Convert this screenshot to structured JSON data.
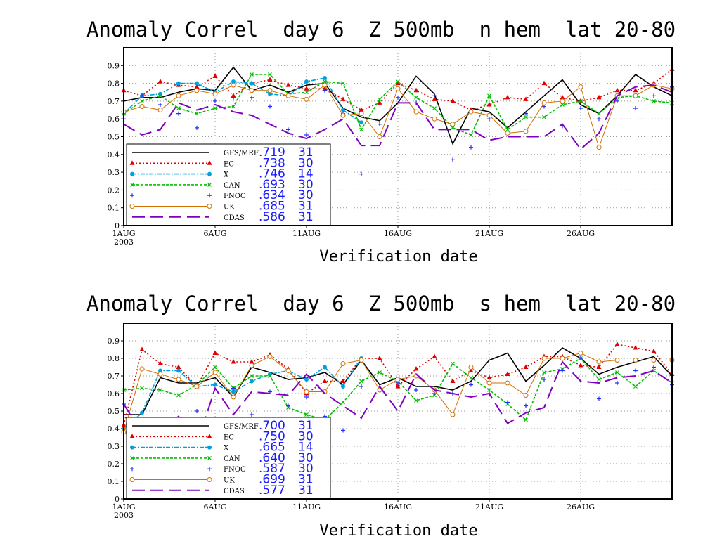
{
  "chart_data": [
    {
      "type": "line",
      "title": "Anomaly Correl  day 6  Z 500mb  n hem  lat 20-80",
      "xlabel": "Verification date",
      "ylabel": "",
      "ylim": [
        0,
        1.0
      ],
      "yticks": [
        "0",
        "0.1",
        "0.2",
        "0.3",
        "0.4",
        "0.5",
        "0.6",
        "0.7",
        "0.8",
        "0.9"
      ],
      "xticks": [
        {
          "day": 1,
          "label": "1AUG",
          "sub": "2003"
        },
        {
          "day": 6,
          "label": "6AUG"
        },
        {
          "day": 11,
          "label": "11AUG"
        },
        {
          "day": 16,
          "label": "16AUG"
        },
        {
          "day": 21,
          "label": "21AUG"
        },
        {
          "day": 26,
          "label": "26AUG"
        }
      ],
      "xlim": [
        1,
        31
      ],
      "grid": true,
      "legend_position": "lower-left",
      "series": [
        {
          "name": "GFS/MRF",
          "mean": ".719",
          "count": "31",
          "color": "#000000",
          "style": "solid",
          "marker": "none",
          "x": [
            1,
            2,
            3,
            4,
            5,
            6,
            7,
            8,
            9,
            10,
            11,
            12,
            13,
            14,
            15,
            16,
            17,
            18,
            19,
            20,
            21,
            22,
            23,
            24,
            25,
            26,
            27,
            28,
            29,
            30,
            31
          ],
          "y": [
            0.7,
            0.72,
            0.72,
            0.75,
            0.77,
            0.76,
            0.89,
            0.76,
            0.79,
            0.75,
            0.79,
            0.8,
            0.66,
            0.61,
            0.59,
            0.69,
            0.84,
            0.74,
            0.46,
            0.66,
            0.64,
            0.55,
            0.64,
            0.73,
            0.82,
            0.68,
            0.63,
            0.73,
            0.85,
            0.78,
            0.73
          ]
        },
        {
          "name": "EC",
          "mean": ".738",
          "count": "30",
          "color": "#e00000",
          "style": "dotted",
          "marker": "triangle",
          "x": [
            1,
            2,
            3,
            4,
            5,
            6,
            7,
            8,
            9,
            10,
            11,
            12,
            13,
            14,
            15,
            16,
            17,
            18,
            19,
            20,
            21,
            22,
            23,
            24,
            25,
            26,
            27,
            28,
            29,
            30,
            31
          ],
          "y": [
            0.76,
            0.73,
            0.81,
            0.79,
            0.78,
            0.84,
            0.73,
            0.8,
            0.82,
            0.79,
            0.77,
            0.77,
            0.71,
            0.65,
            0.69,
            0.8,
            0.76,
            0.71,
            0.7,
            0.65,
            0.68,
            0.72,
            0.71,
            0.8,
            0.72,
            0.7,
            0.72,
            0.76,
            0.76,
            0.8,
            0.88
          ]
        },
        {
          "name": "X",
          "mean": ".746",
          "count": "14",
          "color": "#00a0e0",
          "style": "dashdot",
          "marker": "circle",
          "x": [
            1,
            2,
            3,
            4,
            5,
            6,
            7,
            8,
            9,
            10,
            11,
            12,
            13,
            14
          ],
          "y": [
            0.63,
            0.73,
            0.74,
            0.8,
            0.8,
            0.75,
            0.81,
            0.8,
            0.74,
            0.73,
            0.81,
            0.83,
            0.65,
            0.58
          ]
        },
        {
          "name": "CAN",
          "mean": ".693",
          "count": "30",
          "color": "#00c000",
          "style": "dashed",
          "marker": "x",
          "x": [
            1,
            2,
            3,
            4,
            5,
            6,
            7,
            8,
            9,
            10,
            11,
            12,
            13,
            14,
            15,
            16,
            17,
            18,
            19,
            20,
            21,
            22,
            23,
            24,
            25,
            26,
            27,
            28,
            29,
            30,
            31
          ],
          "y": [
            0.63,
            0.7,
            0.73,
            0.66,
            0.63,
            0.66,
            0.67,
            0.85,
            0.85,
            0.74,
            0.75,
            0.81,
            0.8,
            0.54,
            0.71,
            0.81,
            0.72,
            0.66,
            0.55,
            0.51,
            0.73,
            0.54,
            0.61,
            0.61,
            0.68,
            0.7,
            0.63,
            0.72,
            0.73,
            0.7,
            0.69
          ]
        },
        {
          "name": "FNOC",
          "mean": ".634",
          "count": "30",
          "color": "#2030ff",
          "style": "none",
          "marker": "plus",
          "x": [
            1,
            2,
            3,
            4,
            5,
            6,
            7,
            8,
            9,
            10,
            11,
            12,
            13,
            14,
            15,
            16,
            17,
            18,
            19,
            20,
            21,
            22,
            23,
            24,
            25,
            26,
            27,
            28,
            29,
            30,
            31
          ],
          "y": [
            0.6,
            0.73,
            0.68,
            0.63,
            0.55,
            0.7,
            0.72,
            0.72,
            0.67,
            0.54,
            0.51,
            0.76,
            0.63,
            0.29,
            0.57,
            0.72,
            0.69,
            0.73,
            0.37,
            0.44,
            0.6,
            0.52,
            0.63,
            0.67,
            0.56,
            0.66,
            0.6,
            0.7,
            0.66,
            0.73,
            0.78
          ]
        },
        {
          "name": "UK",
          "mean": ".685",
          "count": "31",
          "color": "#d07000",
          "style": "solid-thin",
          "marker": "circle-open",
          "x": [
            1,
            2,
            3,
            4,
            5,
            6,
            7,
            8,
            9,
            10,
            11,
            12,
            13,
            14,
            15,
            16,
            17,
            18,
            19,
            20,
            21,
            22,
            23,
            24,
            25,
            26,
            27,
            28,
            29,
            30,
            31
          ],
          "y": [
            0.64,
            0.67,
            0.65,
            0.73,
            0.76,
            0.74,
            0.79,
            0.76,
            0.76,
            0.73,
            0.71,
            0.79,
            0.62,
            0.63,
            0.5,
            0.77,
            0.64,
            0.6,
            0.57,
            0.64,
            0.62,
            0.52,
            0.53,
            0.69,
            0.7,
            0.78,
            0.44,
            0.73,
            0.73,
            0.79,
            0.77
          ]
        },
        {
          "name": "CDAS",
          "mean": ".586",
          "count": "31",
          "color": "#8000c0",
          "style": "longdash",
          "marker": "none",
          "x": [
            1,
            2,
            3,
            4,
            5,
            6,
            7,
            8,
            9,
            10,
            11,
            12,
            13,
            14,
            15,
            16,
            17,
            18,
            19,
            20,
            21,
            22,
            23,
            24,
            25,
            26,
            27,
            28,
            29,
            30,
            31
          ],
          "y": [
            0.57,
            0.51,
            0.54,
            0.69,
            0.65,
            0.68,
            0.64,
            0.62,
            0.57,
            0.52,
            0.49,
            0.54,
            0.6,
            0.45,
            0.45,
            0.69,
            0.69,
            0.54,
            0.54,
            0.54,
            0.48,
            0.5,
            0.5,
            0.5,
            0.57,
            0.43,
            0.52,
            0.73,
            0.78,
            0.79,
            0.75
          ]
        }
      ]
    },
    {
      "type": "line",
      "title": "Anomaly Correl  day 6  Z 500mb  s hem  lat 20-80",
      "xlabel": "Verification date",
      "ylabel": "",
      "ylim": [
        0,
        1.0
      ],
      "yticks": [
        "0",
        "0.1",
        "0.2",
        "0.3",
        "0.4",
        "0.5",
        "0.6",
        "0.7",
        "0.8",
        "0.9"
      ],
      "xticks": [
        {
          "day": 1,
          "label": "1AUG",
          "sub": "2003"
        },
        {
          "day": 6,
          "label": "6AUG"
        },
        {
          "day": 11,
          "label": "11AUG"
        },
        {
          "day": 16,
          "label": "16AUG"
        },
        {
          "day": 21,
          "label": "21AUG"
        },
        {
          "day": 26,
          "label": "26AUG"
        }
      ],
      "xlim": [
        1,
        31
      ],
      "grid": true,
      "legend_position": "lower-left",
      "series": [
        {
          "name": "GFS/MRF",
          "mean": ".700",
          "count": "31",
          "color": "#000000",
          "style": "solid",
          "marker": "none",
          "x": [
            1,
            2,
            3,
            4,
            5,
            6,
            7,
            8,
            9,
            10,
            11,
            12,
            13,
            14,
            15,
            16,
            17,
            18,
            19,
            20,
            21,
            22,
            23,
            24,
            25,
            26,
            27,
            28,
            29,
            30,
            31
          ],
          "y": [
            0.48,
            0.48,
            0.69,
            0.66,
            0.66,
            0.69,
            0.58,
            0.75,
            0.72,
            0.68,
            0.69,
            0.72,
            0.65,
            0.79,
            0.65,
            0.69,
            0.64,
            0.64,
            0.62,
            0.67,
            0.79,
            0.83,
            0.67,
            0.76,
            0.86,
            0.8,
            0.71,
            0.75,
            0.78,
            0.81,
            0.7
          ]
        },
        {
          "name": "EC",
          "mean": ".750",
          "count": "30",
          "color": "#e00000",
          "style": "dotted",
          "marker": "triangle",
          "x": [
            1,
            2,
            3,
            4,
            5,
            6,
            7,
            8,
            9,
            10,
            11,
            12,
            13,
            14,
            15,
            16,
            17,
            18,
            19,
            20,
            21,
            22,
            23,
            24,
            25,
            26,
            27,
            28,
            29,
            30,
            31
          ],
          "y": [
            0.42,
            0.85,
            0.77,
            0.75,
            0.64,
            0.83,
            0.78,
            0.78,
            0.82,
            0.74,
            0.6,
            0.67,
            0.67,
            0.8,
            0.8,
            0.64,
            0.74,
            0.81,
            0.67,
            0.73,
            0.69,
            0.71,
            0.75,
            0.81,
            0.81,
            0.76,
            0.75,
            0.88,
            0.86,
            0.84,
            0.71
          ]
        },
        {
          "name": "X",
          "mean": ".665",
          "count": "14",
          "color": "#00a0e0",
          "style": "dashdot",
          "marker": "circle",
          "x": [
            1,
            2,
            3,
            4,
            5,
            6,
            7,
            8,
            9,
            10,
            11,
            12,
            13,
            14
          ],
          "y": [
            0.4,
            0.49,
            0.73,
            0.73,
            0.64,
            0.65,
            0.61,
            0.67,
            0.71,
            0.73,
            0.68,
            0.75,
            0.64,
            0.8
          ]
        },
        {
          "name": "CAN",
          "mean": ".640",
          "count": "30",
          "color": "#00c000",
          "style": "dashed",
          "marker": "x",
          "x": [
            1,
            2,
            3,
            4,
            5,
            6,
            7,
            8,
            9,
            10,
            11,
            12,
            13,
            14,
            15,
            16,
            17,
            18,
            19,
            20,
            21,
            22,
            23,
            24,
            25,
            26,
            27,
            28,
            29,
            30,
            31
          ],
          "y": [
            0.62,
            0.63,
            0.62,
            0.59,
            0.65,
            0.75,
            0.63,
            0.7,
            0.7,
            0.52,
            0.48,
            0.45,
            0.55,
            0.67,
            0.72,
            0.67,
            0.56,
            0.59,
            0.77,
            0.69,
            0.62,
            0.54,
            0.45,
            0.72,
            0.74,
            0.8,
            0.68,
            0.72,
            0.64,
            0.73,
            0.66
          ]
        },
        {
          "name": "FNOC",
          "mean": ".587",
          "count": "30",
          "color": "#2030ff",
          "style": "none",
          "marker": "plus",
          "x": [
            1,
            2,
            3,
            4,
            5,
            6,
            7,
            8,
            9,
            10,
            11,
            12,
            13,
            14,
            15,
            16,
            17,
            18,
            19,
            20,
            21,
            22,
            23,
            24,
            25,
            26,
            27,
            28,
            29,
            30,
            31
          ],
          "y": [
            0.54,
            0.3,
            0.44,
            0.34,
            0.5,
            0.45,
            0.63,
            0.48,
            0.61,
            0.53,
            0.58,
            0.47,
            0.39,
            0.64,
            0.63,
            0.66,
            0.62,
            0.6,
            0.6,
            0.65,
            0.6,
            0.55,
            0.53,
            0.68,
            0.73,
            0.8,
            0.57,
            0.66,
            0.73,
            0.75,
            0.65
          ]
        },
        {
          "name": "UK",
          "mean": ".699",
          "count": "31",
          "color": "#d07000",
          "style": "solid-thin",
          "marker": "circle-open",
          "x": [
            1,
            2,
            3,
            4,
            5,
            6,
            7,
            8,
            9,
            10,
            11,
            12,
            13,
            14,
            15,
            16,
            17,
            18,
            19,
            20,
            21,
            22,
            23,
            24,
            25,
            26,
            27,
            28,
            29,
            30,
            31
          ],
          "y": [
            0.38,
            0.74,
            0.71,
            0.68,
            0.64,
            0.72,
            0.58,
            0.76,
            0.81,
            0.73,
            0.61,
            0.61,
            0.77,
            0.79,
            0.62,
            0.68,
            0.7,
            0.62,
            0.48,
            0.75,
            0.66,
            0.66,
            0.59,
            0.8,
            0.8,
            0.83,
            0.78,
            0.79,
            0.79,
            0.79,
            0.79
          ]
        },
        {
          "name": "CDAS",
          "mean": ".577",
          "count": "31",
          "color": "#8000c0",
          "style": "longdash",
          "marker": "none",
          "x": [
            1,
            2,
            3,
            4,
            5,
            6,
            7,
            8,
            9,
            10,
            11,
            12,
            13,
            14,
            15,
            16,
            17,
            18,
            19,
            20,
            21,
            22,
            23,
            24,
            25,
            26,
            27,
            28,
            29,
            30,
            31
          ],
          "y": [
            0.54,
            0.37,
            0.38,
            0.47,
            0.31,
            0.63,
            0.48,
            0.61,
            0.6,
            0.59,
            0.71,
            0.6,
            0.53,
            0.46,
            0.64,
            0.5,
            0.71,
            0.62,
            0.6,
            0.58,
            0.6,
            0.43,
            0.49,
            0.52,
            0.78,
            0.67,
            0.66,
            0.69,
            0.7,
            0.73,
            0.66
          ]
        }
      ]
    }
  ]
}
